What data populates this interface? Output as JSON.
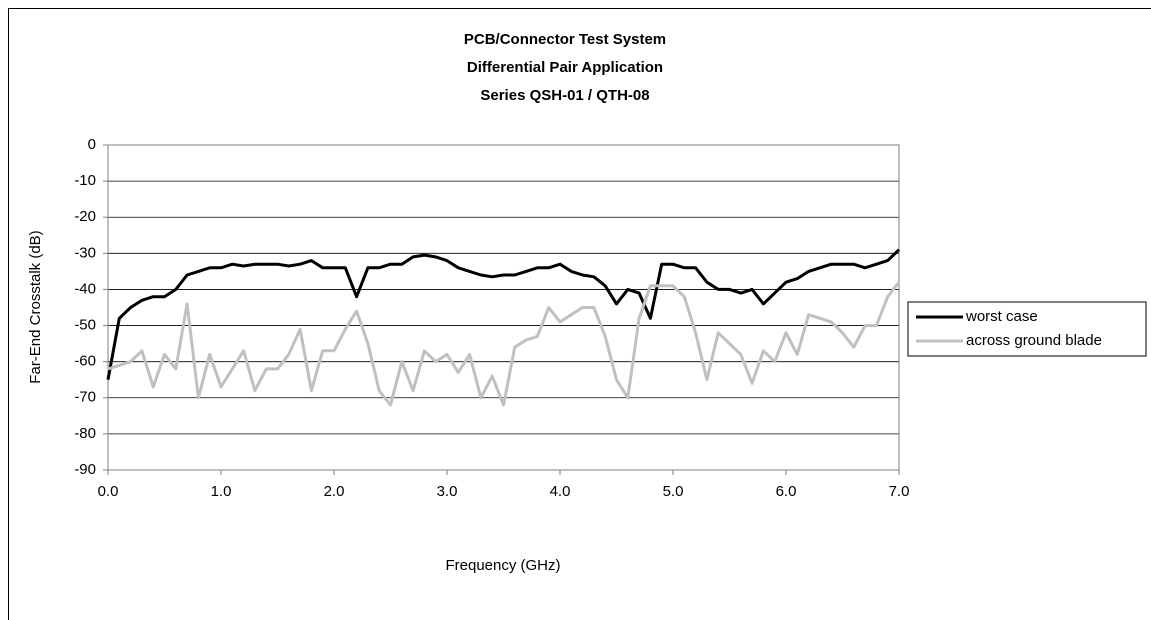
{
  "chart_data": {
    "type": "line",
    "title": [
      "PCB/Connector Test System",
      "Differential Pair Application",
      "Series QSH-01 / QTH-08"
    ],
    "x_label": "Frequency (GHz)",
    "y_label": "Far-End Crosstalk (dB)",
    "x": [
      0,
      0.1,
      0.2,
      0.3,
      0.4,
      0.5,
      0.6,
      0.7,
      0.8,
      0.9,
      1,
      1.1,
      1.2,
      1.3,
      1.4,
      1.5,
      1.6,
      1.7,
      1.8,
      1.9,
      2,
      2.1,
      2.2,
      2.3,
      2.4,
      2.5,
      2.6,
      2.7,
      2.8,
      2.9,
      3,
      3.1,
      3.2,
      3.3,
      3.4,
      3.5,
      3.6,
      3.7,
      3.8,
      3.9,
      4,
      4.1,
      4.2,
      4.3,
      4.4,
      4.5,
      4.6,
      4.7,
      4.8,
      4.9,
      5,
      5.1,
      5.2,
      5.3,
      5.4,
      5.5,
      5.6,
      5.7,
      5.8,
      5.9,
      6,
      6.1,
      6.2,
      6.3,
      6.4,
      6.5,
      6.6,
      6.7,
      6.8,
      6.9,
      7
    ],
    "series": [
      {
        "name": "worst case",
        "color": "#000000",
        "values": [
          -65,
          -48,
          -45,
          -43,
          -42,
          -42,
          -40,
          -36,
          -35,
          -34,
          -34,
          -33,
          -33.5,
          -33,
          -33,
          -33,
          -33.5,
          -33,
          -32,
          -34,
          -34,
          -34,
          -42,
          -34,
          -34,
          -33,
          -33,
          -31,
          -30.5,
          -31,
          -32,
          -34,
          -35,
          -36,
          -36.5,
          -36,
          -36,
          -35,
          -34,
          -34,
          -33,
          -35,
          -36,
          -36.5,
          -39,
          -44,
          -40,
          -41,
          -48,
          -33,
          -33,
          -34,
          -34,
          -38,
          -40,
          -40,
          -41,
          -40,
          -44,
          -41,
          -38,
          -37,
          -35,
          -34,
          -33,
          -33,
          -33,
          -34,
          -33,
          -32,
          -29
        ]
      },
      {
        "name": "across ground blade",
        "color": "#c0c0c0",
        "values": [
          -62,
          -61,
          -60,
          -57,
          -67,
          -58,
          -62,
          -44,
          -70,
          -58,
          -67,
          -62,
          -57,
          -68,
          -62,
          -62,
          -58,
          -51,
          -68,
          -57,
          -57,
          -51,
          -46,
          -55,
          -68,
          -72,
          -60,
          -68,
          -57,
          -60,
          -58,
          -63,
          -58,
          -70,
          -64,
          -72,
          -56,
          -54,
          -53,
          -45,
          -49,
          -47,
          -45,
          -45,
          -53,
          -65,
          -70,
          -48,
          -39,
          -39,
          -39,
          -42,
          -52,
          -65,
          -52,
          -55,
          -58,
          -66,
          -57,
          -60,
          -52,
          -58,
          -47,
          -48,
          -49,
          -52,
          -56,
          -50,
          -50,
          -42,
          -38
        ]
      }
    ],
    "xlim": [
      0,
      7
    ],
    "xticks": [
      {
        "value": 0,
        "label": "0.0"
      },
      {
        "value": 1,
        "label": "1.0"
      },
      {
        "value": 2,
        "label": "2.0"
      },
      {
        "value": 3,
        "label": "3.0"
      },
      {
        "value": 4,
        "label": "4.0"
      },
      {
        "value": 5,
        "label": "5.0"
      },
      {
        "value": 6,
        "label": "6.0"
      },
      {
        "value": 7,
        "label": "7.0"
      }
    ],
    "ylim": [
      -90,
      0
    ],
    "yticks": [
      0,
      -10,
      -20,
      -30,
      -40,
      -50,
      -60,
      -70,
      -80,
      -90
    ],
    "grid": true,
    "legend": "right"
  }
}
